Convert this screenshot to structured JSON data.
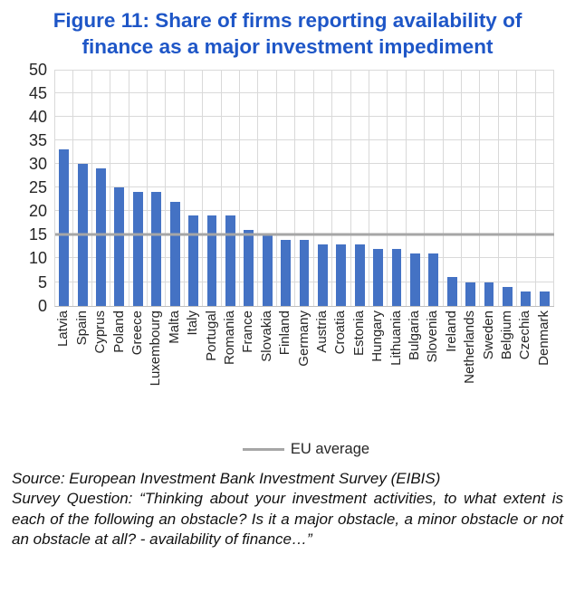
{
  "title": "Figure 11: Share of firms reporting availability of finance as a major investment impediment",
  "legend": {
    "eu_average_label": "EU average"
  },
  "footer": {
    "source": "Source: European Investment Bank Investment Survey (EIBIS)",
    "survey_question": "Survey Question: “Thinking about your investment activities, to what extent is each of the following an obstacle? Is it a major obstacle, a minor obstacle or not an obstacle at all? - availability of finance…”"
  },
  "colors": {
    "bar": "#4472C4",
    "eu_line": "#A6A6A6",
    "title": "#1E56C7",
    "gridline": "#D9D9D9",
    "axis_line": "#BFBFBF"
  },
  "chart_data": {
    "type": "bar",
    "title": "Figure 11: Share of firms reporting availability of finance as a major investment impediment",
    "categories": [
      "Latvia",
      "Spain",
      "Cyprus",
      "Poland",
      "Greece",
      "Luxembourg",
      "Malta",
      "Italy",
      "Portugal",
      "Romania",
      "France",
      "Slovakia",
      "Finland",
      "Germany",
      "Austria",
      "Croatia",
      "Estonia",
      "Hungary",
      "Lithuania",
      "Bulgaria",
      "Slovenia",
      "Ireland",
      "Netherlands",
      "Sweden",
      "Belgium",
      "Czechia",
      "Denmark"
    ],
    "values": [
      33,
      30,
      29,
      25,
      24,
      24,
      22,
      19,
      19,
      19,
      16,
      15,
      14,
      14,
      13,
      13,
      13,
      12,
      12,
      11,
      11,
      6,
      5,
      5,
      4,
      3,
      3
    ],
    "eu_average": 15,
    "xlabel": "",
    "ylabel": "",
    "ylim": [
      0,
      50
    ],
    "ytick_step": 5,
    "grid": true,
    "legend_entries": [
      "EU average"
    ],
    "legend_position": "bottom"
  }
}
